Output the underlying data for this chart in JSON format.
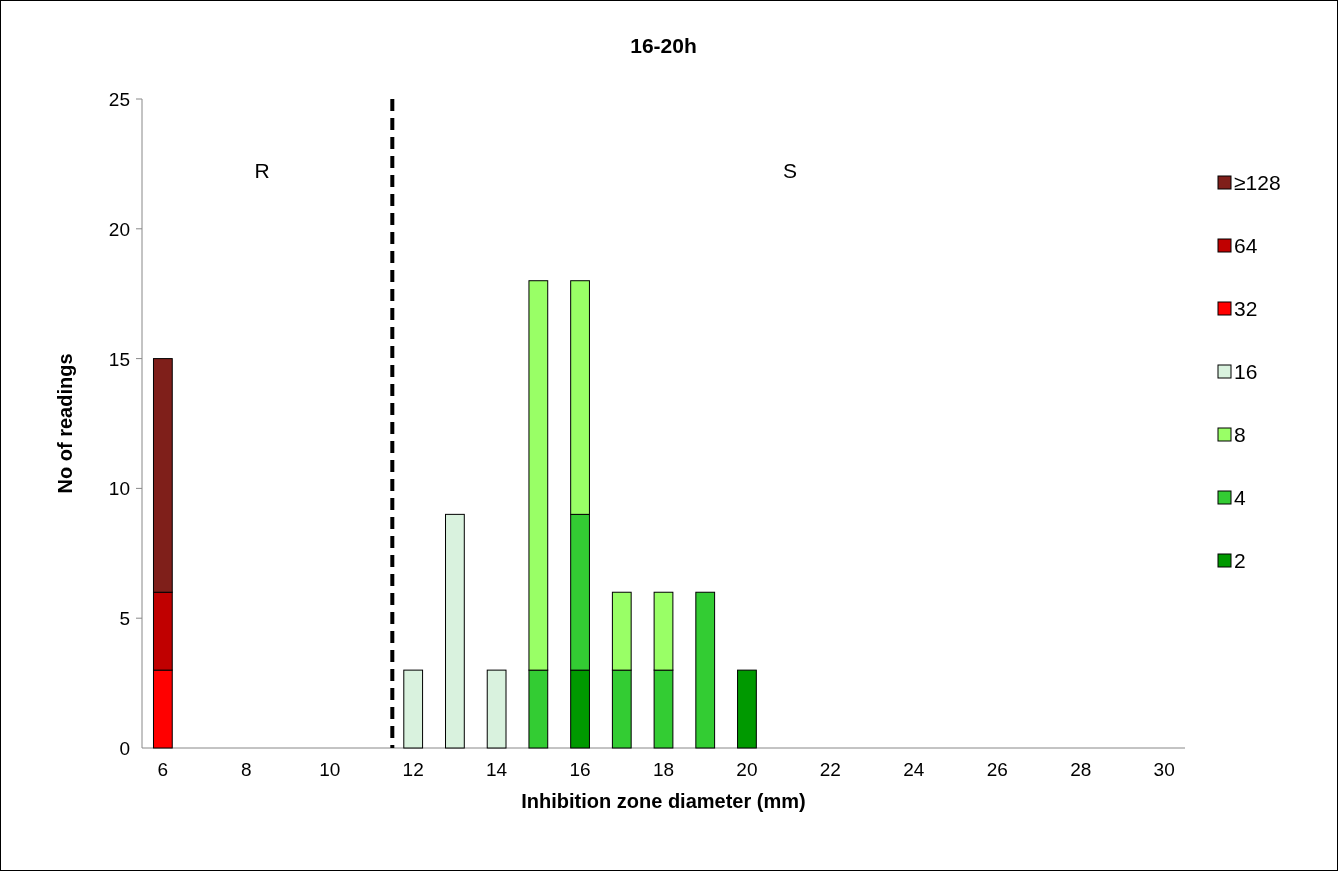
{
  "chart_data": {
    "type": "bar",
    "title": "16-20h",
    "xlabel": "Inhibition zone diameter (mm)",
    "ylabel": "No of readings",
    "stacked": true,
    "x": [
      6,
      7,
      8,
      9,
      10,
      11,
      12,
      13,
      14,
      15,
      16,
      17,
      18,
      19,
      20,
      21,
      22,
      23,
      24,
      25,
      26,
      27,
      28,
      29,
      30
    ],
    "series": [
      {
        "name": "2",
        "color": "#009900",
        "values": [
          0,
          0,
          0,
          0,
          0,
          0,
          0,
          0,
          0,
          0,
          3,
          0,
          0,
          0,
          3,
          0,
          0,
          0,
          0,
          0,
          0,
          0,
          0,
          0,
          0
        ]
      },
      {
        "name": "4",
        "color": "#33cc33",
        "values": [
          0,
          0,
          0,
          0,
          0,
          0,
          0,
          0,
          0,
          3,
          6,
          3,
          3,
          6,
          0,
          0,
          0,
          0,
          0,
          0,
          0,
          0,
          0,
          0,
          0
        ]
      },
      {
        "name": "8",
        "color": "#99ff66",
        "values": [
          0,
          0,
          0,
          0,
          0,
          0,
          0,
          0,
          0,
          15,
          9,
          3,
          3,
          0,
          0,
          0,
          0,
          0,
          0,
          0,
          0,
          0,
          0,
          0,
          0
        ]
      },
      {
        "name": "16",
        "color": "#d9f2de",
        "values": [
          0,
          0,
          0,
          0,
          0,
          0,
          3,
          9,
          3,
          0,
          0,
          0,
          0,
          0,
          0,
          0,
          0,
          0,
          0,
          0,
          0,
          0,
          0,
          0,
          0
        ]
      },
      {
        "name": "32",
        "color": "#ff0000",
        "values": [
          3,
          0,
          0,
          0,
          0,
          0,
          0,
          0,
          0,
          0,
          0,
          0,
          0,
          0,
          0,
          0,
          0,
          0,
          0,
          0,
          0,
          0,
          0,
          0,
          0
        ]
      },
      {
        "name": "64",
        "color": "#c00000",
        "values": [
          3,
          0,
          0,
          0,
          0,
          0,
          0,
          0,
          0,
          0,
          0,
          0,
          0,
          0,
          0,
          0,
          0,
          0,
          0,
          0,
          0,
          0,
          0,
          0,
          0
        ]
      },
      {
        "name": "≥128",
        "color": "#7f1f1a",
        "values": [
          9,
          0,
          0,
          0,
          0,
          0,
          0,
          0,
          0,
          0,
          0,
          0,
          0,
          0,
          0,
          0,
          0,
          0,
          0,
          0,
          0,
          0,
          0,
          0,
          0
        ]
      }
    ],
    "xlim": [
      5.5,
      30.5
    ],
    "xticks": [
      6,
      8,
      10,
      12,
      14,
      16,
      18,
      20,
      22,
      24,
      26,
      28,
      30
    ],
    "ylim": [
      0,
      25
    ],
    "yticks": [
      0,
      5,
      10,
      15,
      20,
      25
    ],
    "ref_lines": [
      {
        "axis": "x",
        "value": 11.5,
        "color": "#000000",
        "line_style": "dashed"
      }
    ],
    "annotations": [
      "R",
      "S"
    ],
    "legend": "right",
    "grid": false
  }
}
